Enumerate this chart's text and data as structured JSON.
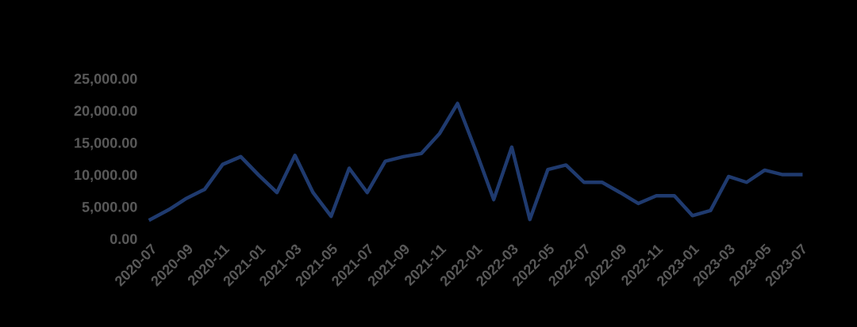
{
  "chart_data": {
    "type": "line",
    "categories": [
      "2020-07",
      null,
      "2020-09",
      null,
      "2020-11",
      null,
      "2021-01",
      null,
      "2021-03",
      null,
      "2021-05",
      null,
      "2021-07",
      null,
      "2021-09",
      null,
      "2021-11",
      null,
      "2022-01",
      null,
      "2022-03",
      null,
      "2022-05",
      null,
      "2022-07",
      null,
      "2022-09",
      null,
      "2022-11",
      null,
      "2023-01",
      null,
      "2023-03",
      null,
      "2023-05",
      null,
      "2023-07"
    ],
    "series": [
      {
        "color": "#1f3a6e",
        "values": [
          3000,
          4500,
          6300,
          7700,
          11600,
          12800,
          9900,
          7200,
          13000,
          7200,
          3500,
          11000,
          7200,
          12100,
          12800,
          13300,
          16400,
          21100,
          13800,
          6100,
          14300,
          3000,
          10800,
          11500,
          8800,
          8800,
          7200,
          5500,
          6700,
          6700,
          3600,
          4400,
          9700,
          8800,
          10700,
          10000,
          10000
        ]
      }
    ],
    "ylim": [
      0,
      25000
    ],
    "yticks": [
      {
        "value": 0,
        "label": "0.00"
      },
      {
        "value": 5000,
        "label": "5,000.00"
      },
      {
        "value": 10000,
        "label": "10,000.00"
      },
      {
        "value": 15000,
        "label": "15,000.00"
      },
      {
        "value": 20000,
        "label": "20,000.00"
      },
      {
        "value": 25000,
        "label": "25,000.00"
      }
    ],
    "grid": false,
    "legend": false,
    "marker": "none",
    "line_style": "solid"
  }
}
